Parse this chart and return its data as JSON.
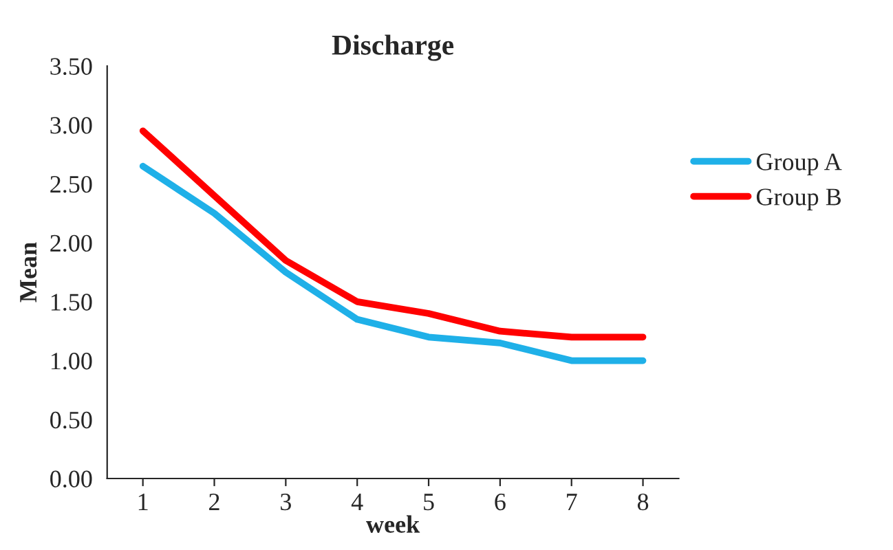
{
  "chart_data": {
    "type": "line",
    "title": "Discharge",
    "xlabel": "week",
    "ylabel": "Mean",
    "categories": [
      "1",
      "2",
      "3",
      "4",
      "5",
      "6",
      "7",
      "8"
    ],
    "series": [
      {
        "name": "Group A",
        "color": "#1fb0e8",
        "values": [
          2.65,
          2.25,
          1.75,
          1.35,
          1.2,
          1.15,
          1.0,
          1.0
        ]
      },
      {
        "name": "Group B",
        "color": "#ff0000",
        "values": [
          2.95,
          2.4,
          1.85,
          1.5,
          1.4,
          1.25,
          1.2,
          1.2
        ]
      }
    ],
    "ylim": [
      0,
      3.5
    ],
    "yticks": [
      {
        "value": 0,
        "label": "0.00"
      },
      {
        "value": 0.5,
        "label": "0.50"
      },
      {
        "value": 1,
        "label": "1.00"
      },
      {
        "value": 1.5,
        "label": "1.50"
      },
      {
        "value": 2,
        "label": "2.00"
      },
      {
        "value": 2.5,
        "label": "2.50"
      },
      {
        "value": 3,
        "label": "3.00"
      },
      {
        "value": 3.5,
        "label": "3.50"
      }
    ],
    "grid": false,
    "legend": "right",
    "marker": "none",
    "line_style": "solid"
  }
}
